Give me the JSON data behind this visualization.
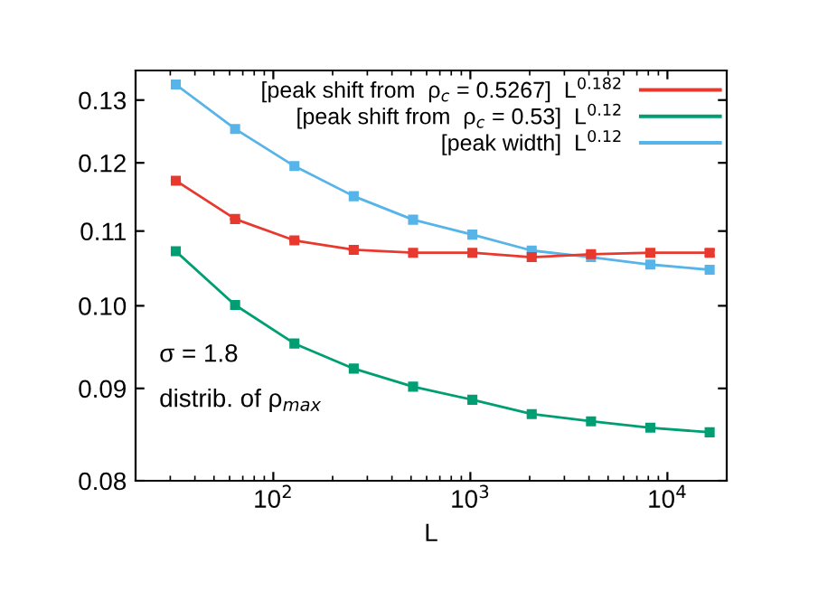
{
  "chart_data": {
    "type": "line",
    "xlabel": "L",
    "log": "xy",
    "x": [
      32,
      64,
      128,
      256,
      512,
      1024,
      2048,
      4096,
      8192,
      16384
    ],
    "series": [
      {
        "name": "[peak shift from  ρ$_{c}$ = 0.5267]  L$^{0.182}$",
        "color": "#e8392f",
        "values": [
          0.1173,
          0.1117,
          0.1087,
          0.1074,
          0.107,
          0.107,
          0.1064,
          0.1068,
          0.107,
          0.107
        ],
        "errors": [
          null,
          null,
          null,
          null,
          null,
          null,
          null,
          null,
          0.0003,
          0.0004
        ]
      },
      {
        "name": "[peak shift from  ρ$_{c}$ = 0.53]  L$^{0.12}$",
        "color": "#009e73",
        "values": [
          0.1072,
          0.1001,
          0.0953,
          0.0923,
          0.0902,
          0.0887,
          0.0871,
          0.0863,
          0.0856,
          0.0851
        ]
      },
      {
        "name": "[peak width]  L$^{0.12}$",
        "color": "#56b4e9",
        "values": [
          0.1326,
          0.1253,
          0.1195,
          0.115,
          0.1116,
          0.1095,
          0.1073,
          0.1064,
          0.1054,
          0.1047
        ]
      }
    ],
    "xlim": [
      20,
      20000
    ],
    "ylim": [
      0.08,
      0.135
    ],
    "xticks": [
      {
        "value": 100,
        "label": "10$^{2}$"
      },
      {
        "value": 1000,
        "label": "10$^{3}$"
      },
      {
        "value": 10000,
        "label": "10$^{4}$"
      }
    ],
    "yticks": [
      0.08,
      0.09,
      {
        "value": 0.1,
        "label": "0.10"
      },
      0.11,
      0.12,
      0.13
    ],
    "marker": "square",
    "legend": "top right",
    "grid": false,
    "annotations": [
      "σ = 1.8",
      "distrib. of ρ$_{max}$"
    ]
  }
}
